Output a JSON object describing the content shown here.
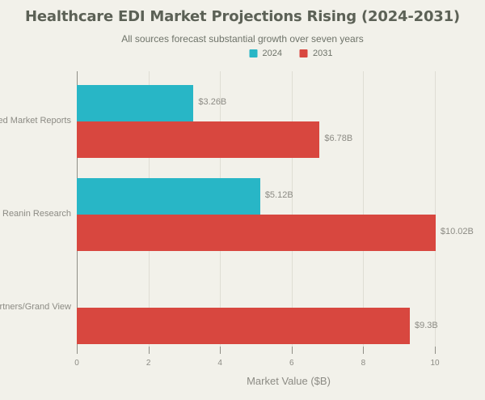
{
  "chart_data": {
    "type": "bar",
    "orientation": "horizontal",
    "title": "Healthcare EDI Market Projections Rising (2024-2031)",
    "subtitle": "All sources forecast substantial growth over seven years",
    "categories": [
      "ied Market Reports",
      "Reanin Research",
      "artners/Grand View"
    ],
    "series": [
      {
        "name": "2024",
        "color": "#28b6c6",
        "values": [
          3.26,
          5.12,
          null
        ],
        "value_labels": [
          "$3.26B",
          "$5.12B",
          null
        ]
      },
      {
        "name": "2031",
        "color": "#d8473f",
        "values": [
          6.78,
          10.02,
          9.3
        ],
        "value_labels": [
          "$6.78B",
          "$10.02B",
          "$9.3B"
        ]
      }
    ],
    "xlabel": "Market Value ($B)",
    "xlim": [
      0,
      10
    ],
    "xticks": [
      0,
      2,
      4,
      6,
      8,
      10
    ],
    "xtick_labels": [
      "0",
      "2",
      "4",
      "6",
      "8",
      "10"
    ],
    "legend_position": "top-center",
    "grid": "vertical"
  },
  "colors": {
    "background": "#f2f1ea",
    "title_text": "#5c6156",
    "subtitle_text": "#6e7369",
    "axis_text": "#8c8b84",
    "gridline": "#dfddd4",
    "axis_line": "#8f8e86",
    "bar_2024": "#28b6c6",
    "bar_2031": "#d8473f"
  }
}
